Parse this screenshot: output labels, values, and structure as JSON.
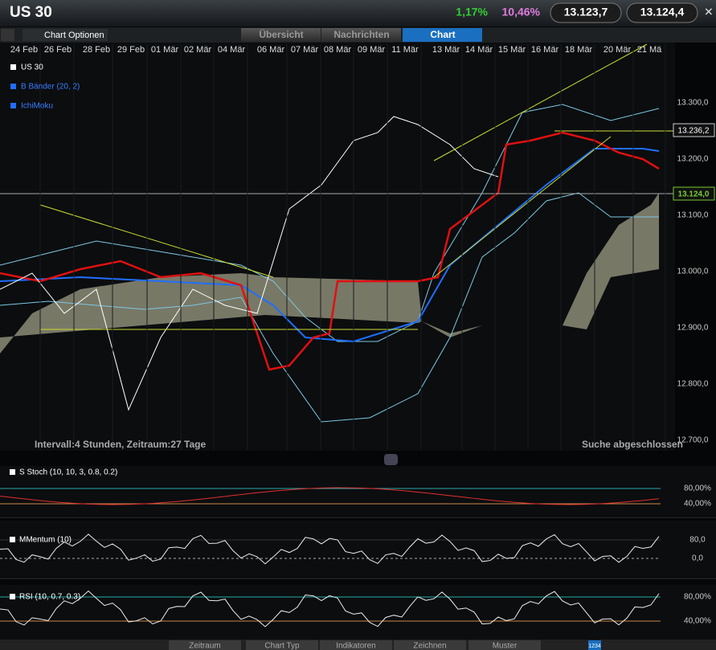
{
  "header": {
    "symbol": "US 30",
    "change_day": "1,17%",
    "change_period": "10,46%",
    "bid": "13.123,7",
    "ask": "13.124,4"
  },
  "toolbar": {
    "options": "Chart Optionen",
    "tabs": [
      "Übersicht",
      "Nachrichten",
      "Chart"
    ]
  },
  "chart": {
    "dates": [
      "24 Feb",
      "26 Feb",
      "28 Feb",
      "29 Feb",
      "01 Mär",
      "02 Mär",
      "04 Mär",
      "06 Mär",
      "07 Mär",
      "08 Mär",
      "09 Mär",
      "11 Mär",
      "13 Mär",
      "14 Mär",
      "15 Mär",
      "16 Mär",
      "18 Mär",
      "20 Mär",
      "21 Mä"
    ],
    "legend": [
      "US 30",
      "B Bänder (20, 2)",
      "IchiMoku"
    ],
    "price_labels": [
      "13.300,0",
      "13.200,0",
      "13.100,0",
      "13.000,0",
      "12.900,0",
      "12.800,0",
      "12.700,0"
    ],
    "marker_upper": "13.236,2",
    "marker_last": "13.124,0",
    "info": "Intervall:4 Stunden, Zeitraum:27 Tage",
    "status": "Suche abgeschlossen"
  },
  "panels": [
    {
      "title": "S Stoch (10, 10, 3, 0.8, 0.2)",
      "labels": [
        "80,00%",
        "40,00%"
      ]
    },
    {
      "title": "MMentum (10)",
      "labels": [
        "80,0",
        "0,0"
      ]
    },
    {
      "title": "RSI (10, 0.7, 0.3)",
      "labels": [
        "80,00%",
        "40,00%"
      ]
    }
  ],
  "bottom": {
    "buttons": [
      "Zeitraum",
      "Chart Typ",
      "Indikatoren",
      "Zeichnen",
      "Muster"
    ],
    "badge": "1234"
  }
}
